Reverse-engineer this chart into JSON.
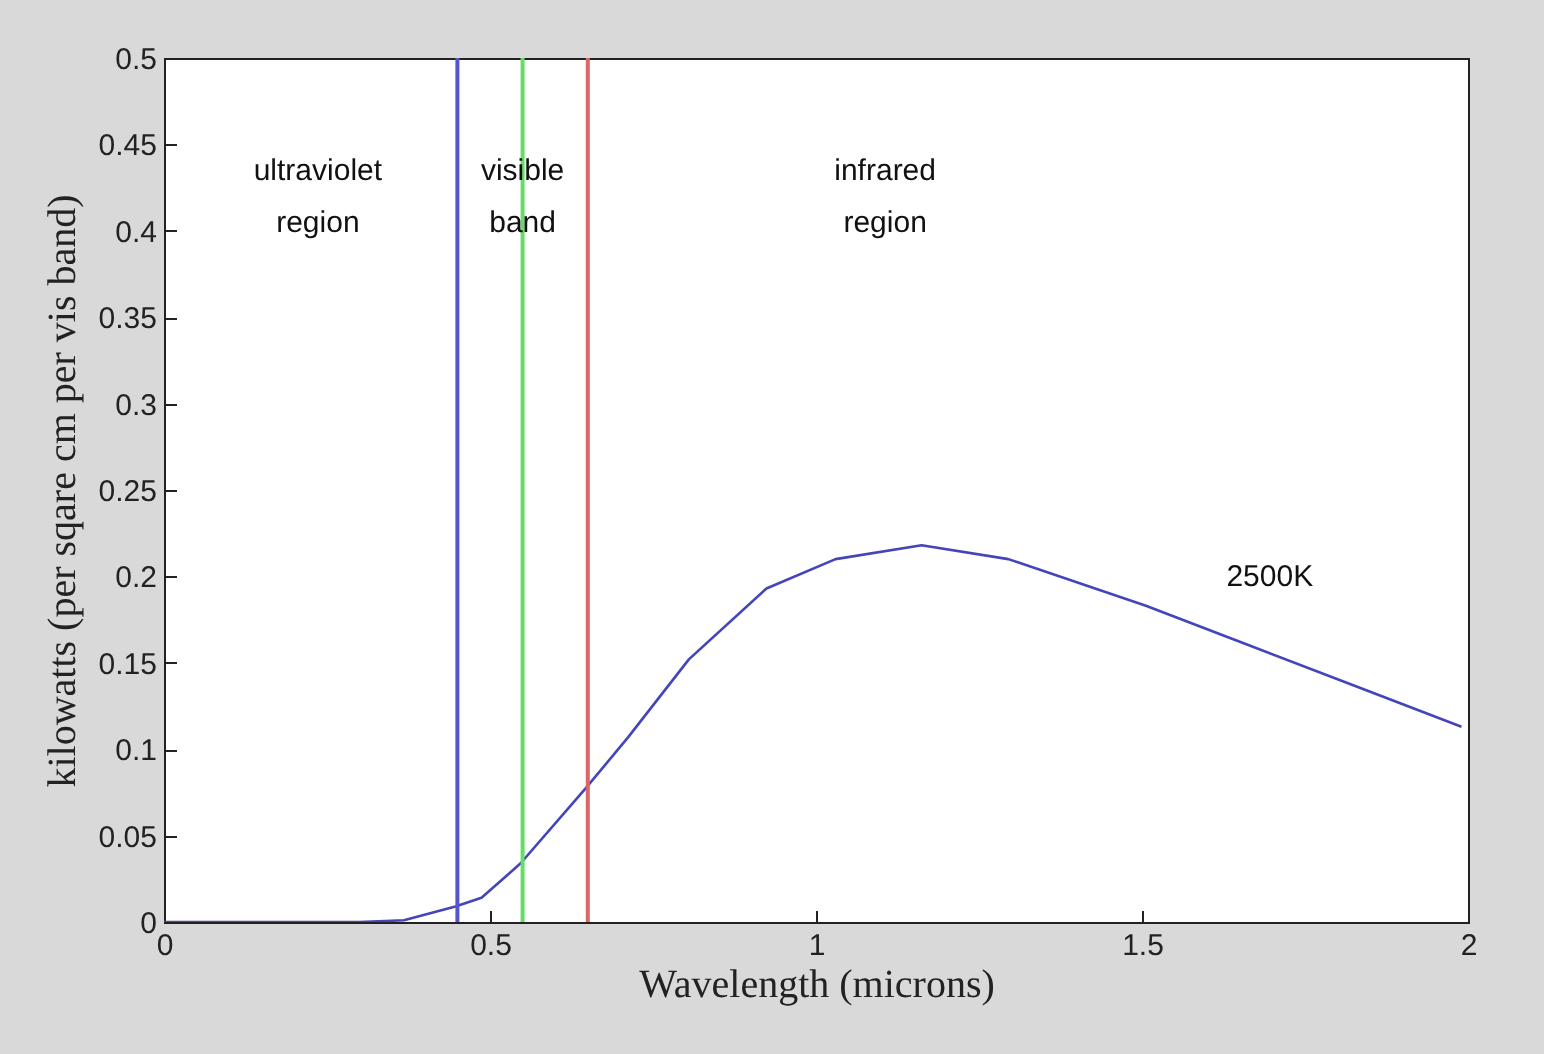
{
  "chart_data": {
    "type": "line",
    "xlabel": "Wavelength (microns)",
    "ylabel": "kilowatts (per sqare cm per vis band)",
    "x": [
      0,
      0.1,
      0.2,
      0.3,
      0.368,
      0.447,
      0.487,
      0.547,
      0.646,
      0.712,
      0.805,
      0.924,
      1.03,
      1.162,
      1.295,
      1.506,
      1.665,
      1.824,
      1.99
    ],
    "series": [
      {
        "color": "#4444bb",
        "values": [
          0,
          0,
          0,
          0,
          0.001,
          0.009,
          0.014,
          0.034,
          0.077,
          0.107,
          0.152,
          0.193,
          0.21,
          0.218,
          0.21,
          0.183,
          0.16,
          0.137,
          0.113
        ]
      }
    ],
    "xlim": [
      0,
      2
    ],
    "xticks": [
      0,
      0.5,
      1,
      1.5,
      2
    ],
    "ylim": [
      0,
      0.5
    ],
    "yticks": [
      0,
      0.05,
      0.1,
      0.15,
      0.2,
      0.25,
      0.3,
      0.35,
      0.4,
      0.45,
      0.5
    ],
    "ref_lines": [
      {
        "axis": "x",
        "value": 0.45,
        "color": "#5555cc"
      },
      {
        "axis": "x",
        "value": 0.55,
        "color": "#66dd66"
      },
      {
        "axis": "x",
        "value": 0.65,
        "color": "#dd6666"
      }
    ],
    "annotations": [
      "ultraviolet\nregion",
      "visible\nband",
      "infrared\nregion",
      "2500K"
    ],
    "marker": "none",
    "line_style": "solid"
  }
}
